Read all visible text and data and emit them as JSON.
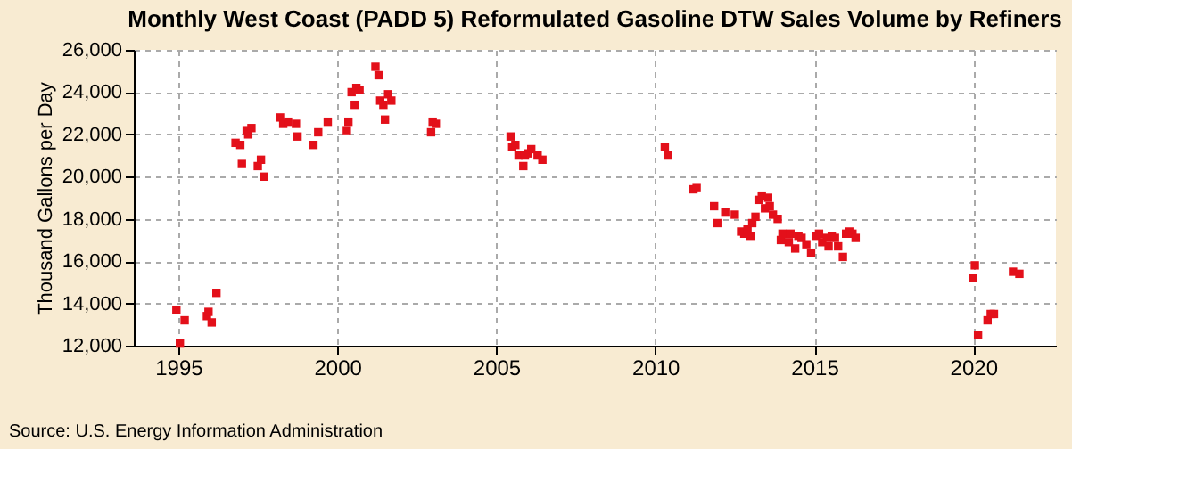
{
  "chart_data": {
    "type": "scatter",
    "title": "Monthly West Coast (PADD 5) Reformulated Gasoline DTW Sales Volume by Refiners",
    "ylabel": "Thousand Gallons per Day",
    "annotations": [
      "Source: U.S. Energy Information Administration"
    ],
    "x": [
      1994.94,
      1995.05,
      1995.2,
      1995.9,
      1995.95,
      1996.05,
      1996.2,
      1996.8,
      1996.95,
      1997.0,
      1997.15,
      1997.2,
      1997.3,
      1997.5,
      1997.6,
      1997.7,
      1998.2,
      1998.3,
      1998.45,
      1998.7,
      1998.75,
      1999.25,
      1999.4,
      1999.7,
      2000.3,
      2000.35,
      2000.45,
      2000.55,
      2000.6,
      2000.7,
      2001.2,
      2001.3,
      2001.35,
      2001.45,
      2001.5,
      2001.6,
      2001.7,
      2002.95,
      2003.0,
      2003.1,
      2005.45,
      2005.5,
      2005.6,
      2005.7,
      2005.85,
      2005.9,
      2006.0,
      2006.1,
      2006.3,
      2006.45,
      2010.3,
      2010.4,
      2011.2,
      2011.3,
      2011.85,
      2011.95,
      2012.2,
      2012.5,
      2012.7,
      2012.8,
      2012.9,
      2013.0,
      2013.05,
      2013.15,
      2013.25,
      2013.35,
      2013.45,
      2013.55,
      2013.6,
      2013.7,
      2013.85,
      2013.95,
      2014.0,
      2014.2,
      2014.25,
      2014.4,
      2014.5,
      2014.6,
      2014.75,
      2014.9,
      2015.05,
      2015.15,
      2015.25,
      2015.4,
      2015.45,
      2015.55,
      2015.65,
      2015.75,
      2015.9,
      2016.0,
      2016.1,
      2016.2,
      2016.3,
      2020.0,
      2020.05,
      2020.15,
      2020.45,
      2020.55,
      2020.65,
      2021.25,
      2021.45
    ],
    "series": [
      {
        "color": "#e3101a",
        "values": [
          13700,
          12100,
          13200,
          13400,
          13600,
          13100,
          14500,
          21600,
          21500,
          20600,
          22200,
          22000,
          22300,
          20500,
          20800,
          20000,
          22800,
          22500,
          22600,
          22500,
          21900,
          21500,
          22100,
          22600,
          22200,
          22600,
          24000,
          23400,
          24200,
          24100,
          25200,
          24800,
          23600,
          23400,
          22700,
          23900,
          23600,
          22100,
          22600,
          22500,
          21900,
          21400,
          21500,
          21000,
          20500,
          21000,
          21100,
          21300,
          21000,
          20800,
          21400,
          21000,
          19400,
          19500,
          18600,
          17800,
          18300,
          18200,
          17400,
          17300,
          17500,
          17200,
          17800,
          18100,
          18900,
          19100,
          18500,
          19000,
          18600,
          18200,
          18000,
          17000,
          17300,
          16900,
          17300,
          16600,
          17200,
          17100,
          16800,
          16400,
          17200,
          17300,
          16900,
          17100,
          16700,
          17200,
          17100,
          16700,
          16200,
          17300,
          17400,
          17300,
          17100,
          15200,
          15800,
          12500,
          13200,
          13500,
          13500,
          15500,
          15400
        ]
      }
    ],
    "xlim": [
      1993.6,
      2022.6
    ],
    "xticks": [
      1995,
      2000,
      2005,
      2010,
      2015,
      2020
    ],
    "ylim": [
      12000,
      26000
    ],
    "yticks": [
      {
        "value": 12000,
        "label": "12,000"
      },
      {
        "value": 14000,
        "label": "14,000"
      },
      {
        "value": 16000,
        "label": "16,000"
      },
      {
        "value": 18000,
        "label": "18,000"
      },
      {
        "value": 20000,
        "label": "20,000"
      },
      {
        "value": 22000,
        "label": "22,000"
      },
      {
        "value": 24000,
        "label": "24,000"
      },
      {
        "value": 26000,
        "label": "26,000"
      }
    ],
    "grid": true,
    "marker": "square"
  }
}
